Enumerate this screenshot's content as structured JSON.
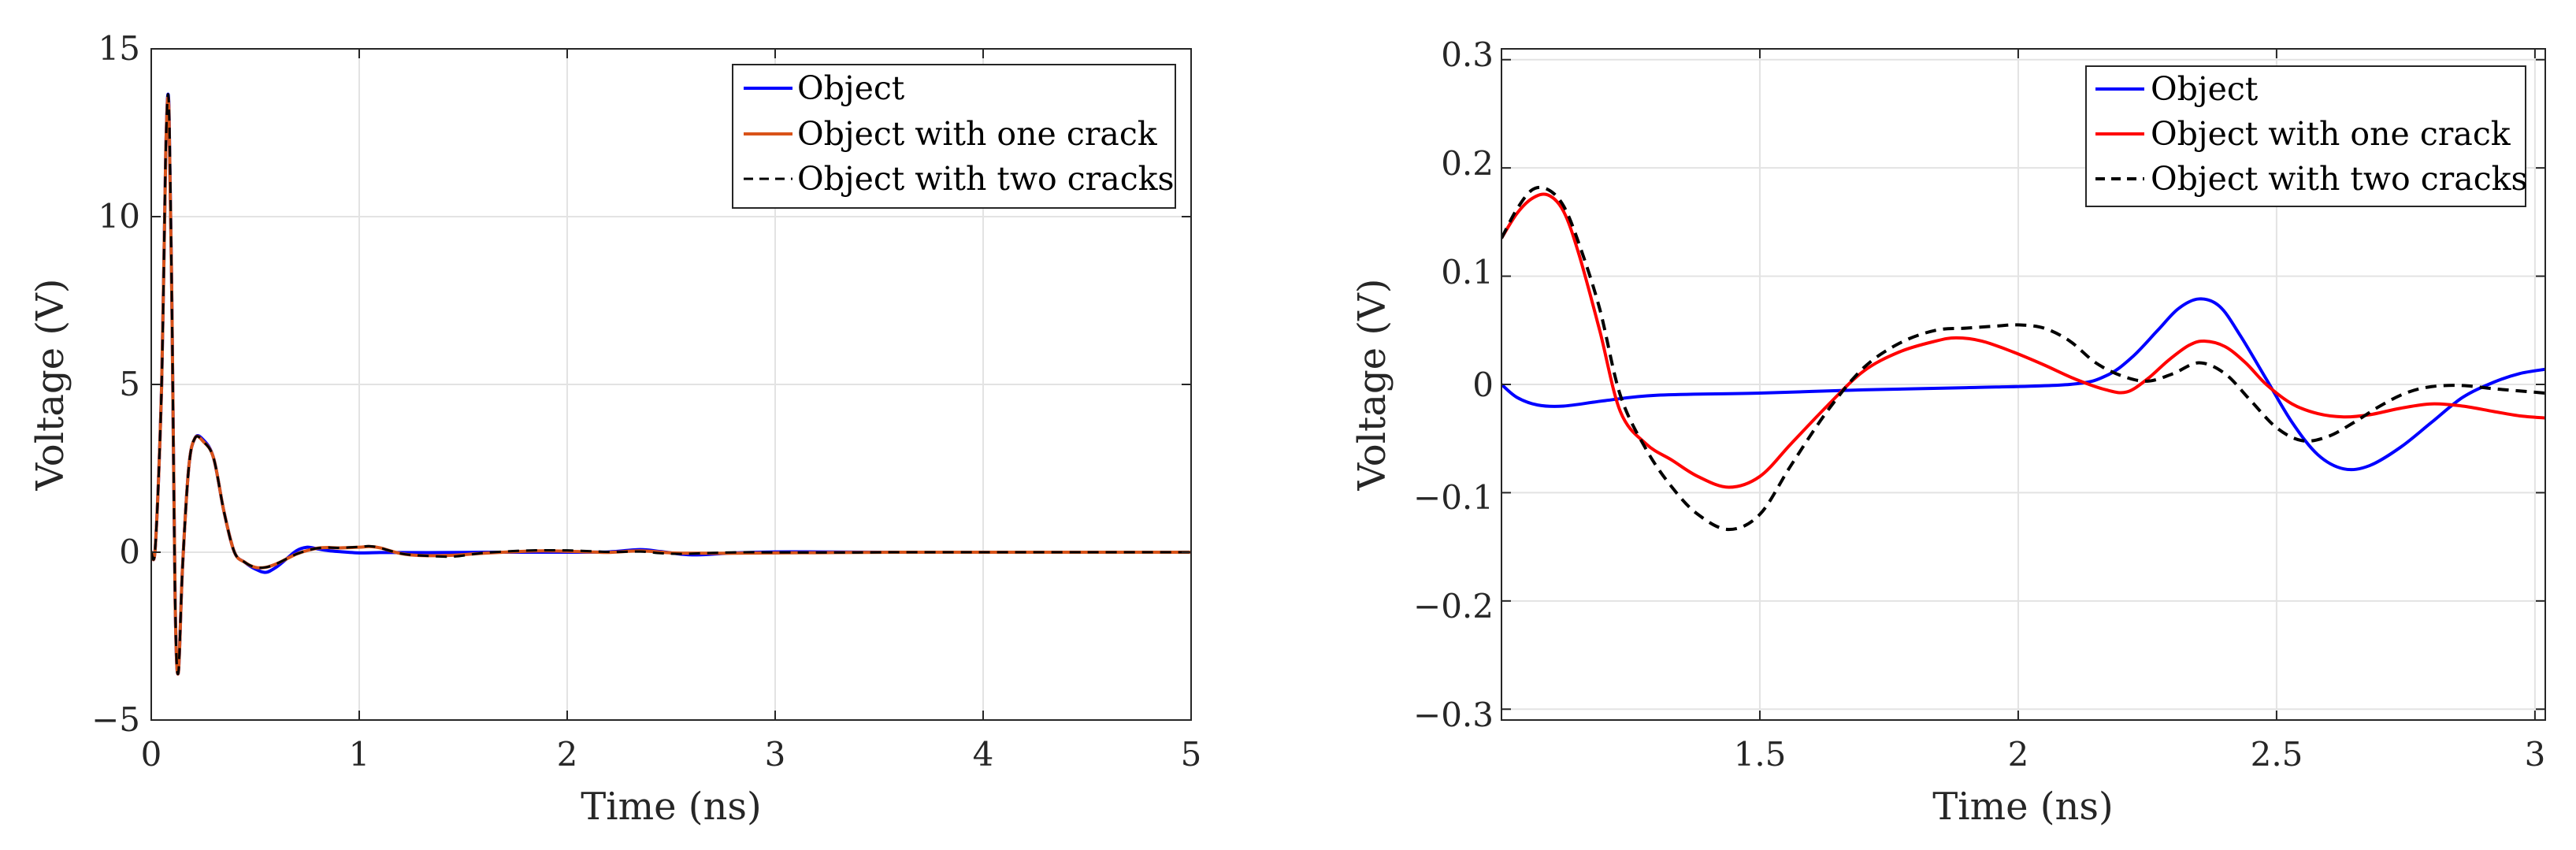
{
  "chart_data": [
    {
      "type": "line",
      "xlabel": "Time (ns)",
      "ylabel": "Voltage (V)",
      "xlim": [
        0,
        5
      ],
      "ylim": [
        -5,
        15
      ],
      "xticks": [
        0,
        1,
        2,
        3,
        4,
        5
      ],
      "xtick_labels": [
        "0",
        "1",
        "2",
        "3",
        "4",
        "5"
      ],
      "yticks": [
        -5,
        0,
        5,
        10,
        15
      ],
      "ytick_labels": [
        "−5",
        "0",
        "5",
        "10",
        "15"
      ],
      "grid": true,
      "legend_position": "top-right",
      "series": [
        {
          "name": "Object",
          "color": "#0000ff",
          "dash": "solid",
          "x": [
            0,
            0.02,
            0.05,
            0.07,
            0.085,
            0.1,
            0.115,
            0.13,
            0.15,
            0.18,
            0.21,
            0.25,
            0.3,
            0.35,
            0.4,
            0.45,
            0.5,
            0.55,
            0.6,
            0.65,
            0.7,
            0.75,
            0.8,
            0.85,
            0.9,
            1.0,
            1.1,
            1.2,
            1.4,
            1.6,
            1.8,
            2.0,
            2.2,
            2.35,
            2.45,
            2.6,
            2.8,
            3.0,
            3.2,
            3.5,
            4.0,
            4.5,
            5.0
          ],
          "y": [
            0,
            0.2,
            5,
            12,
            13.3,
            7,
            -1.5,
            -3.6,
            -0.5,
            2.5,
            3.4,
            3.35,
            2.8,
            1.2,
            0,
            -0.3,
            -0.5,
            -0.6,
            -0.45,
            -0.2,
            0.05,
            0.15,
            0.1,
            0.05,
            0.02,
            -0.02,
            -0.01,
            -0.01,
            -0.01,
            0,
            0,
            0,
            0.01,
            0.08,
            0.02,
            -0.08,
            -0.02,
            0.01,
            0.01,
            0,
            0,
            0,
            0
          ]
        },
        {
          "name": "Object with one crack",
          "color": "#d95319",
          "dash": "solid",
          "x": [
            0,
            0.02,
            0.05,
            0.07,
            0.085,
            0.1,
            0.115,
            0.13,
            0.15,
            0.18,
            0.21,
            0.25,
            0.3,
            0.35,
            0.4,
            0.45,
            0.5,
            0.55,
            0.6,
            0.65,
            0.7,
            0.75,
            0.8,
            0.85,
            0.9,
            1.0,
            1.05,
            1.1,
            1.2,
            1.3,
            1.45,
            1.6,
            1.8,
            1.9,
            2.05,
            2.2,
            2.35,
            2.5,
            2.6,
            2.8,
            3.0,
            3.3,
            3.6,
            4.0,
            4.5,
            5.0
          ],
          "y": [
            0,
            0.2,
            5,
            12,
            13.2,
            7,
            -1.5,
            -3.6,
            -0.5,
            2.5,
            3.4,
            3.3,
            2.8,
            1.2,
            0,
            -0.3,
            -0.45,
            -0.45,
            -0.35,
            -0.2,
            -0.05,
            0.05,
            0.12,
            0.14,
            0.13,
            0.15,
            0.17,
            0.13,
            -0.04,
            -0.1,
            -0.09,
            -0.03,
            0.03,
            0.04,
            0.02,
            -0.005,
            0.04,
            -0.02,
            -0.03,
            -0.03,
            -0.02,
            -0.01,
            0,
            0,
            0,
            0
          ]
        },
        {
          "name": "Object with two cracks",
          "color": "#000000",
          "dash": "dashed",
          "x": [
            0,
            0.02,
            0.05,
            0.07,
            0.085,
            0.1,
            0.115,
            0.13,
            0.15,
            0.18,
            0.21,
            0.25,
            0.3,
            0.35,
            0.4,
            0.45,
            0.5,
            0.55,
            0.6,
            0.65,
            0.7,
            0.75,
            0.8,
            0.85,
            0.9,
            1.0,
            1.05,
            1.1,
            1.2,
            1.3,
            1.45,
            1.6,
            1.8,
            2.0,
            2.2,
            2.35,
            2.45,
            2.55,
            2.7,
            2.85,
            3.0,
            3.3,
            3.6,
            4.0,
            4.5,
            5.0
          ],
          "y": [
            0,
            0.2,
            5,
            12,
            13.3,
            7,
            -1.5,
            -3.6,
            -0.5,
            2.5,
            3.4,
            3.3,
            2.8,
            1.2,
            0,
            -0.3,
            -0.45,
            -0.45,
            -0.35,
            -0.2,
            -0.05,
            0.05,
            0.12,
            0.14,
            0.13,
            0.16,
            0.18,
            0.13,
            -0.04,
            -0.1,
            -0.13,
            -0.02,
            0.05,
            0.055,
            0.01,
            0.02,
            -0.03,
            -0.05,
            -0.02,
            0,
            -0.005,
            -0.01,
            0,
            0,
            0,
            0
          ]
        }
      ]
    },
    {
      "type": "line",
      "xlabel": "Time (ns)",
      "ylabel": "Voltage (V)",
      "xlim": [
        1.0,
        3.02
      ],
      "ylim": [
        -0.31,
        0.31
      ],
      "xticks": [
        1.5,
        2,
        2.5,
        3
      ],
      "xtick_labels": [
        "1.5",
        "2",
        "2.5",
        "3"
      ],
      "yticks": [
        -0.3,
        -0.2,
        -0.1,
        0,
        0.1,
        0.2,
        0.3
      ],
      "ytick_labels": [
        "−0.3",
        "−0.2",
        "−0.1",
        "0",
        "0.1",
        "0.2",
        "0.3"
      ],
      "grid": true,
      "legend_position": "top-right",
      "series": [
        {
          "name": "Object",
          "color": "#0000ff",
          "dash": "solid",
          "x": [
            1.0,
            1.03,
            1.07,
            1.12,
            1.2,
            1.3,
            1.5,
            1.7,
            1.9,
            2.1,
            2.17,
            2.22,
            2.27,
            2.31,
            2.35,
            2.39,
            2.43,
            2.48,
            2.53,
            2.58,
            2.63,
            2.68,
            2.74,
            2.8,
            2.86,
            2.92,
            2.97,
            3.02
          ],
          "y": [
            0,
            -0.012,
            -0.019,
            -0.02,
            -0.015,
            -0.01,
            -0.008,
            -0.005,
            -0.003,
            0,
            0.008,
            0.025,
            0.05,
            0.07,
            0.079,
            0.072,
            0.045,
            0.005,
            -0.035,
            -0.065,
            -0.078,
            -0.075,
            -0.058,
            -0.035,
            -0.012,
            0.002,
            0.01,
            0.014
          ]
        },
        {
          "name": "Object with one crack",
          "color": "#ff0000",
          "dash": "solid",
          "x": [
            1.0,
            1.03,
            1.06,
            1.09,
            1.12,
            1.15,
            1.19,
            1.23,
            1.28,
            1.33,
            1.38,
            1.44,
            1.5,
            1.56,
            1.63,
            1.7,
            1.77,
            1.84,
            1.88,
            1.93,
            1.99,
            2.05,
            2.11,
            2.17,
            2.21,
            2.25,
            2.29,
            2.33,
            2.36,
            2.4,
            2.44,
            2.48,
            2.53,
            2.58,
            2.63,
            2.68,
            2.74,
            2.8,
            2.86,
            2.92,
            2.97,
            3.02
          ],
          "y": [
            0.135,
            0.158,
            0.172,
            0.175,
            0.16,
            0.12,
            0.05,
            -0.025,
            -0.055,
            -0.07,
            -0.085,
            -0.095,
            -0.085,
            -0.055,
            -0.02,
            0.012,
            0.03,
            0.04,
            0.043,
            0.04,
            0.03,
            0.018,
            0.005,
            -0.005,
            -0.007,
            0.005,
            0.022,
            0.036,
            0.04,
            0.035,
            0.02,
            0.0,
            -0.018,
            -0.027,
            -0.03,
            -0.028,
            -0.022,
            -0.018,
            -0.02,
            -0.025,
            -0.029,
            -0.031
          ]
        },
        {
          "name": "Object with two cracks",
          "color": "#000000",
          "dash": "dashed",
          "x": [
            1.0,
            1.03,
            1.06,
            1.09,
            1.12,
            1.15,
            1.19,
            1.23,
            1.28,
            1.33,
            1.38,
            1.44,
            1.5,
            1.56,
            1.63,
            1.7,
            1.77,
            1.84,
            1.9,
            1.96,
            2.0,
            2.05,
            2.1,
            2.15,
            2.2,
            2.25,
            2.3,
            2.35,
            2.4,
            2.45,
            2.5,
            2.55,
            2.6,
            2.65,
            2.7,
            2.75,
            2.8,
            2.86,
            2.92,
            2.97,
            3.02
          ],
          "y": [
            0.135,
            0.162,
            0.18,
            0.18,
            0.165,
            0.13,
            0.07,
            -0.01,
            -0.06,
            -0.095,
            -0.12,
            -0.134,
            -0.12,
            -0.075,
            -0.025,
            0.015,
            0.038,
            0.05,
            0.052,
            0.054,
            0.055,
            0.052,
            0.04,
            0.02,
            0.008,
            0.003,
            0.01,
            0.02,
            0.01,
            -0.015,
            -0.04,
            -0.052,
            -0.048,
            -0.035,
            -0.02,
            -0.008,
            -0.002,
            -0.001,
            -0.004,
            -0.006,
            -0.008
          ]
        }
      ]
    }
  ]
}
